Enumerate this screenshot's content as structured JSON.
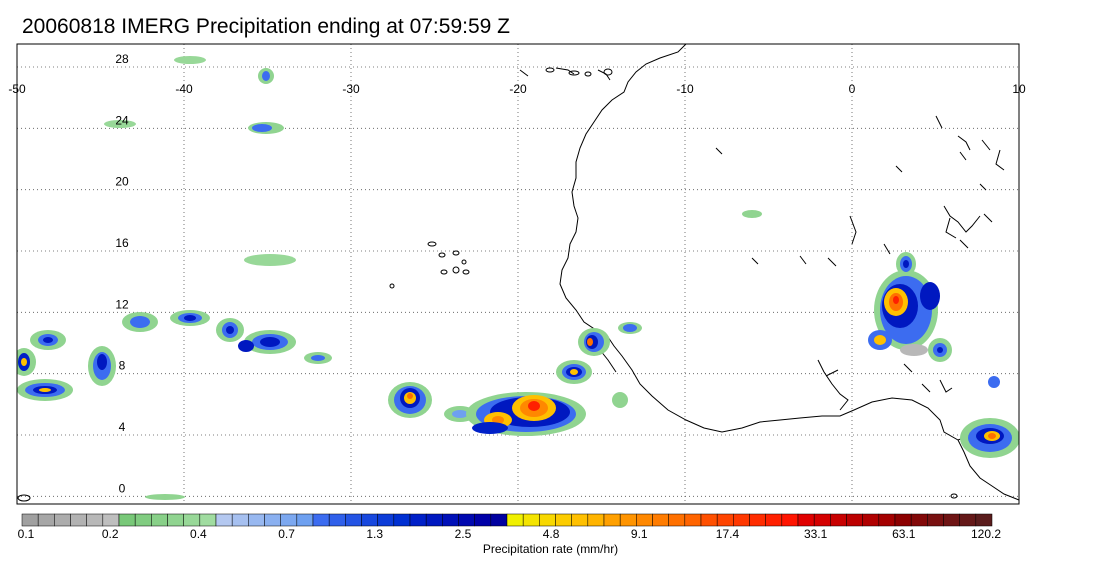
{
  "title": "20060818 IMERG Precipitation ending at 07:59:59 Z",
  "map": {
    "lon_ticks": [
      "-50",
      "-40",
      "-30",
      "-20",
      "-10",
      "0",
      "10"
    ],
    "lat_ticks": [
      "28",
      "24",
      "20",
      "16",
      "12",
      "8",
      "4",
      "0"
    ],
    "lon_range": [
      -50,
      10
    ],
    "lat_range": [
      -0.5,
      29.5
    ],
    "grid": "dotted"
  },
  "colorbar": {
    "label": "Precipitation rate (mm/hr)",
    "tick_labels": [
      "0.1",
      "0.2",
      "0.4",
      "0.7",
      "1.3",
      "2.5",
      "4.8",
      "9.1",
      "17.4",
      "33.1",
      "63.1",
      "120.2"
    ],
    "colors": [
      "#a0a0a0",
      "#a6a6a6",
      "#acacac",
      "#b2b2b2",
      "#b8b8b8",
      "#bebebe",
      "#78c878",
      "#80cc80",
      "#88d088",
      "#90d490",
      "#98d898",
      "#a0dca0",
      "#b4c8f0",
      "#a6c0f0",
      "#98b8f0",
      "#8ab0f0",
      "#7ca8f0",
      "#6ea0f0",
      "#3c6cf0",
      "#3060ea",
      "#2454e4",
      "#1848de",
      "#0c3cd8",
      "#0030d2",
      "#0020c8",
      "#0018c0",
      "#0010b8",
      "#0008b0",
      "#0000a8",
      "#0000a0",
      "#f0f000",
      "#f4e400",
      "#f8d800",
      "#fccc00",
      "#ffc000",
      "#ffb400",
      "#ffa000",
      "#ff9400",
      "#ff8800",
      "#ff7c00",
      "#ff7000",
      "#ff6400",
      "#ff5000",
      "#ff4400",
      "#ff3800",
      "#ff2c00",
      "#ff2000",
      "#ff1400",
      "#e00000",
      "#d40000",
      "#c80000",
      "#bc0000",
      "#b00000",
      "#a40000",
      "#8c0000",
      "#820808",
      "#781010",
      "#6e1414",
      "#641818",
      "#5a1c1c"
    ]
  }
}
